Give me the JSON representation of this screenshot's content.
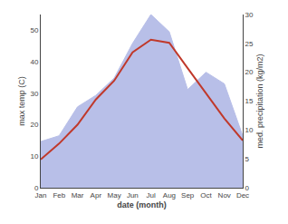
{
  "chart_data": {
    "type": "line",
    "categories": [
      "Jan",
      "Feb",
      "Mar",
      "Apr",
      "May",
      "Jun",
      "Jul",
      "Aug",
      "Sep",
      "Oct",
      "Nov",
      "Dec"
    ],
    "xlabel": "date (month)",
    "ylabel": "max temp (C)",
    "y2label": "med. precipitation (kg/m2)",
    "series": [
      {
        "type": "area",
        "axis": "y2",
        "color": "#b8bfe8",
        "values": [
          8,
          9,
          14,
          16,
          19,
          25,
          30,
          27,
          17,
          20,
          18,
          9
        ]
      },
      {
        "type": "line",
        "color": "#c0392b",
        "values": [
          9,
          14,
          20,
          28,
          34,
          43,
          47,
          46,
          38,
          30,
          22,
          15
        ]
      }
    ],
    "ylim": [
      0,
      55
    ],
    "yticks": [
      0,
      10,
      20,
      30,
      40,
      50
    ],
    "y2lim": [
      0,
      30
    ],
    "y2ticks": [
      0,
      5,
      10,
      15,
      20,
      25,
      30
    ],
    "grid": false
  }
}
